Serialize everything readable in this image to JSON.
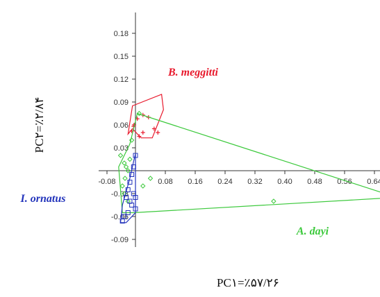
{
  "chart_data": {
    "type": "scatter",
    "xlabel": "PC۱=٪۵۷/۲۶",
    "ylabel": "PC۲=٪۲/۸۴",
    "xlim": [
      -0.08,
      0.7
    ],
    "ylim": [
      -0.1,
      0.2
    ],
    "x_ticks": [
      -0.08,
      0.08,
      0.16,
      0.24,
      0.32,
      0.4,
      0.48,
      0.56,
      0.64
    ],
    "x_tick_labels": [
      "-0.08",
      "0.08",
      "0.16",
      "0.24",
      "0.32",
      "0.40",
      "0.48",
      "0.56",
      "0.64"
    ],
    "y_ticks": [
      -0.09,
      -0.06,
      -0.03,
      0.03,
      0.06,
      0.09,
      0.12,
      0.15,
      0.18
    ],
    "y_tick_labels": [
      "-0.09",
      "-0.06",
      "-0.03",
      "0.03",
      "0.06",
      "0.09",
      "0.12",
      "0.15",
      "0.18"
    ],
    "grid": false,
    "series": [
      {
        "name": "B. meggitti",
        "color": "#e8192c",
        "marker": "plus",
        "points": [
          [
            -0.01,
            0.052
          ],
          [
            -0.005,
            0.058
          ],
          [
            0.005,
            0.068
          ],
          [
            0.02,
            0.073
          ],
          [
            0.035,
            0.07
          ],
          [
            0.05,
            0.055
          ],
          [
            0.06,
            0.05
          ],
          [
            0.02,
            0.05
          ],
          [
            0.01,
            0.045
          ],
          [
            -0.004,
            0.06
          ]
        ],
        "hull": [
          [
            -0.008,
            0.085
          ],
          [
            0.07,
            0.1
          ],
          [
            0.075,
            0.08
          ],
          [
            0.045,
            0.043
          ],
          [
            0.015,
            0.043
          ],
          [
            -0.008,
            0.055
          ],
          [
            -0.02,
            0.048
          ]
        ]
      },
      {
        "name": "A. dayi",
        "color": "#3cc93c",
        "marker": "diamond",
        "points": [
          [
            -0.03,
            0.01
          ],
          [
            -0.025,
            0.005
          ],
          [
            -0.02,
            0.0
          ],
          [
            -0.035,
            -0.02
          ],
          [
            -0.03,
            -0.03
          ],
          [
            -0.028,
            -0.01
          ],
          [
            -0.015,
            0.015
          ],
          [
            -0.01,
            0.04
          ],
          [
            0.02,
            -0.02
          ],
          [
            0.04,
            -0.01
          ],
          [
            0.37,
            -0.04
          ],
          [
            -0.04,
            0.02
          ],
          [
            -0.02,
            -0.04
          ],
          [
            0.01,
            0.075
          ]
        ],
        "hull": [
          [
            0.005,
            0.075
          ],
          [
            0.7,
            -0.035
          ],
          [
            -0.005,
            -0.055
          ],
          [
            -0.035,
            -0.055
          ],
          [
            -0.045,
            0.005
          ],
          [
            -0.015,
            0.035
          ]
        ]
      },
      {
        "name": "I. ornatus",
        "color": "#2233bb",
        "marker": "square",
        "points": [
          [
            0.0,
            0.02
          ],
          [
            -0.005,
            0.005
          ],
          [
            -0.01,
            -0.005
          ],
          [
            -0.015,
            -0.015
          ],
          [
            -0.02,
            -0.025
          ],
          [
            -0.025,
            -0.035
          ],
          [
            -0.01,
            -0.045
          ],
          [
            0.0,
            -0.05
          ],
          [
            -0.02,
            -0.055
          ],
          [
            -0.03,
            -0.06
          ],
          [
            -0.035,
            -0.066
          ],
          [
            -0.005,
            -0.03
          ],
          [
            0.0,
            -0.035
          ],
          [
            -0.015,
            -0.04
          ]
        ],
        "hull": [
          [
            0.0,
            0.022
          ],
          [
            0.0,
            -0.055
          ],
          [
            -0.025,
            -0.068
          ],
          [
            -0.04,
            -0.068
          ],
          [
            -0.035,
            -0.045
          ],
          [
            -0.015,
            -0.01
          ],
          [
            -0.005,
            0.012
          ]
        ]
      }
    ]
  }
}
